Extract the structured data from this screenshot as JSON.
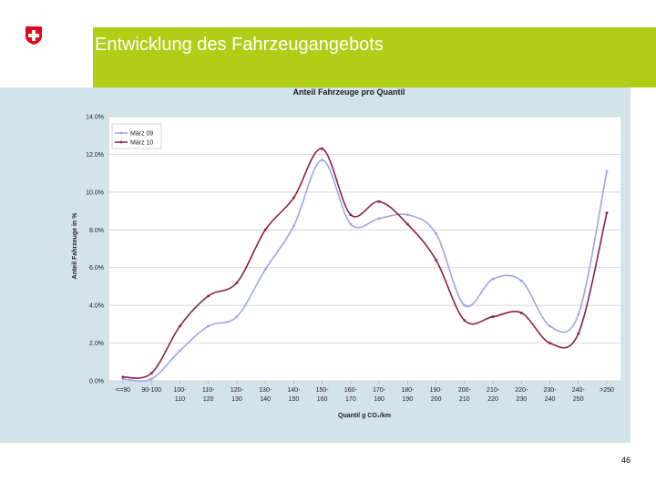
{
  "slide": {
    "title": "Entwicklung des Fahrzeugangebots",
    "page_number": "46"
  },
  "colors": {
    "accent_green": "#b1cd16",
    "panel_bg": "#d3e3ea",
    "series1": "#9da4e8",
    "series2": "#8a1f4d",
    "swiss_red": "#e3051b"
  },
  "chart_data": {
    "type": "line",
    "title": "Anteil Fahrzeuge pro Quantil",
    "xlabel": "Quantil g CO₂/km",
    "ylabel": "Anteil Fahrzeuge in %",
    "ylim": [
      0,
      14
    ],
    "yticks": [
      "0.0%",
      "2.0%",
      "4.0%",
      "6.0%",
      "8.0%",
      "10.0%",
      "12.0%",
      "14.0%"
    ],
    "categories": [
      [
        "<=90"
      ],
      [
        "90-100"
      ],
      [
        "100-",
        "110"
      ],
      [
        "110-",
        "120"
      ],
      [
        "120-",
        "130"
      ],
      [
        "130-",
        "140"
      ],
      [
        "140-",
        "150"
      ],
      [
        "150-",
        "160"
      ],
      [
        "160-",
        "170"
      ],
      [
        "170-",
        "180"
      ],
      [
        "180-",
        "190"
      ],
      [
        "190-",
        "200"
      ],
      [
        "200-",
        "210"
      ],
      [
        "210-",
        "220"
      ],
      [
        "220-",
        "230"
      ],
      [
        "230-",
        "240"
      ],
      [
        "240-",
        "250"
      ],
      [
        ">250"
      ]
    ],
    "series": [
      {
        "name": "März 09",
        "values": [
          0.1,
          0.1,
          1.6,
          2.9,
          3.4,
          5.9,
          8.2,
          11.7,
          8.3,
          8.6,
          8.8,
          7.8,
          4.0,
          5.4,
          5.3,
          2.9,
          3.5,
          11.1
        ]
      },
      {
        "name": "März 10",
        "values": [
          0.2,
          0.4,
          2.9,
          4.5,
          5.2,
          8.0,
          9.7,
          12.3,
          8.8,
          9.5,
          8.3,
          6.4,
          3.2,
          3.4,
          3.6,
          2.0,
          2.5,
          8.9
        ]
      }
    ],
    "legend_position": "top-left",
    "grid": true
  }
}
